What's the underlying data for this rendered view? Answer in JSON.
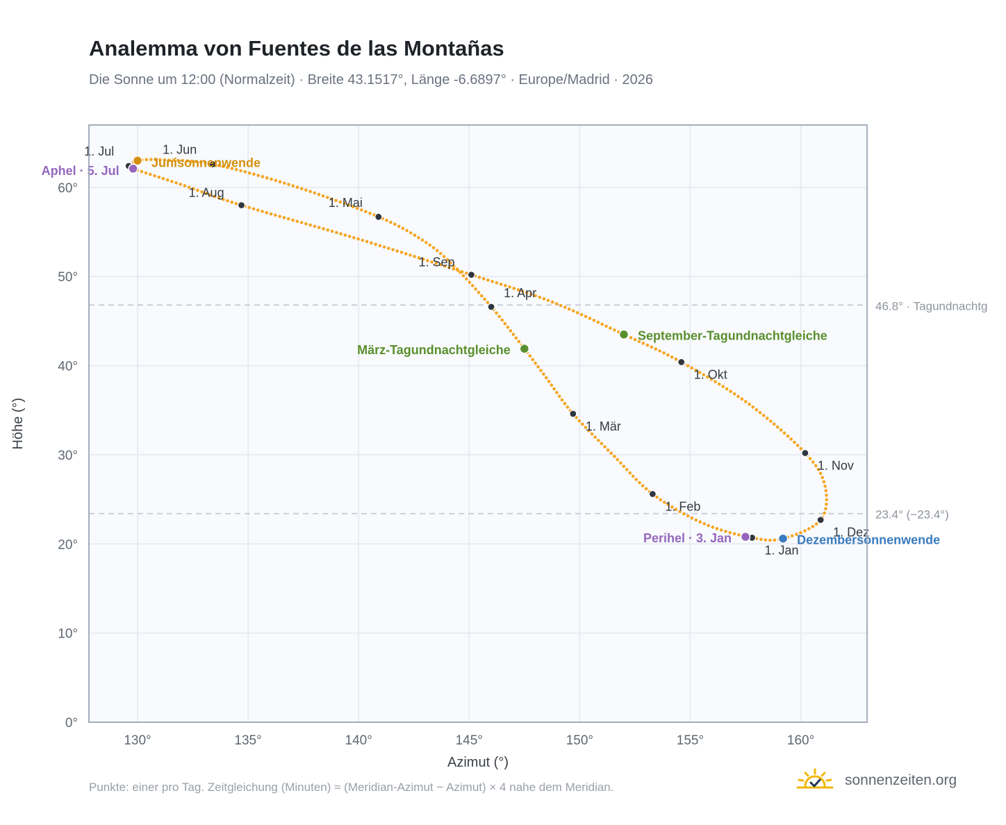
{
  "title": "Analemma von Fuentes de las Montañas",
  "subtitle": "Die Sonne um 12:00 (Normalzeit) · Breite 43.1517°, Länge -6.6897° · Europe/Madrid · 2026",
  "footnote": "Punkte: einer pro Tag. Zeitgleichung (Minuten) ≈ (Meridian-Azimut − Azimut) × 4 nahe dem Meridian.",
  "brand": {
    "name": "sonnenzeiten.org",
    "icon": "sun-check-icon"
  },
  "colors": {
    "curve": "#f5a623",
    "month_marker": "#2f3640",
    "solstice_june": "#d4900d",
    "solstice_december": "#3a7bbf",
    "equinox": "#5a8f2e",
    "apsis": "#9467bd",
    "reference_line": "#c3cad3"
  },
  "chart_data": {
    "type": "scatter",
    "xlabel": "Azimut (°)",
    "ylabel": "Höhe (°)",
    "xlim": [
      127.8,
      163.0
    ],
    "ylim": [
      0,
      67
    ],
    "xticks": [
      130,
      135,
      140,
      145,
      150,
      155,
      160
    ],
    "yticks": [
      0,
      10,
      20,
      30,
      40,
      50,
      60
    ],
    "tick_suffix": "°",
    "grid": true,
    "analemma_path": [
      {
        "az": 157.8,
        "alt": 20.7
      },
      {
        "az": 155.6,
        "alt": 22.3
      },
      {
        "az": 153.3,
        "alt": 25.6
      },
      {
        "az": 151.5,
        "alt": 30.0
      },
      {
        "az": 149.7,
        "alt": 34.6
      },
      {
        "az": 148.5,
        "alt": 38.6
      },
      {
        "az": 147.5,
        "alt": 41.9
      },
      {
        "az": 146.0,
        "alt": 46.6
      },
      {
        "az": 144.3,
        "alt": 51.2
      },
      {
        "az": 143.0,
        "alt": 53.9
      },
      {
        "az": 140.9,
        "alt": 56.7
      },
      {
        "az": 137.0,
        "alt": 60.2
      },
      {
        "az": 133.4,
        "alt": 62.6
      },
      {
        "az": 131.0,
        "alt": 63.1
      },
      {
        "az": 130.0,
        "alt": 63.0
      },
      {
        "az": 129.6,
        "alt": 62.4
      },
      {
        "az": 129.8,
        "alt": 62.1
      },
      {
        "az": 132.0,
        "alt": 60.3
      },
      {
        "az": 134.7,
        "alt": 58.0
      },
      {
        "az": 140.0,
        "alt": 54.2
      },
      {
        "az": 145.1,
        "alt": 50.2
      },
      {
        "az": 148.7,
        "alt": 47.2
      },
      {
        "az": 152.0,
        "alt": 43.5
      },
      {
        "az": 154.6,
        "alt": 40.4
      },
      {
        "az": 157.6,
        "alt": 35.8
      },
      {
        "az": 160.2,
        "alt": 30.2
      },
      {
        "az": 161.1,
        "alt": 26.5
      },
      {
        "az": 160.9,
        "alt": 22.7
      },
      {
        "az": 159.2,
        "alt": 20.6
      },
      {
        "az": 157.8,
        "alt": 20.7
      }
    ],
    "month_points": [
      {
        "label": "1. Jan",
        "az": 157.8,
        "alt": 20.7,
        "dx": 18,
        "dy": 24
      },
      {
        "label": "1. Feb",
        "az": 153.3,
        "alt": 25.6,
        "dx": 18,
        "dy": 24
      },
      {
        "label": "1. Mär",
        "az": 149.7,
        "alt": 34.6,
        "dx": 18,
        "dy": 24
      },
      {
        "label": "1. Apr",
        "az": 146.0,
        "alt": 46.6,
        "dx": 18,
        "dy": -14
      },
      {
        "label": "1. Mai",
        "az": 140.9,
        "alt": 56.7,
        "dx": -72,
        "dy": -14
      },
      {
        "label": "1. Jun",
        "az": 133.4,
        "alt": 62.6,
        "dx": -72,
        "dy": -15
      },
      {
        "label": "1. Jul",
        "az": 129.6,
        "alt": 62.4,
        "dx": -64,
        "dy": -15
      },
      {
        "label": "1. Aug",
        "az": 134.7,
        "alt": 58.0,
        "dx": -76,
        "dy": -12
      },
      {
        "label": "1. Sep",
        "az": 145.1,
        "alt": 50.2,
        "dx": -76,
        "dy": -12
      },
      {
        "label": "1. Okt",
        "az": 154.6,
        "alt": 40.4,
        "dx": 18,
        "dy": 24
      },
      {
        "label": "1. Nov",
        "az": 160.2,
        "alt": 30.2,
        "dx": 18,
        "dy": 24
      },
      {
        "label": "1. Dez",
        "az": 160.9,
        "alt": 22.7,
        "dx": 18,
        "dy": 24
      }
    ],
    "events": [
      {
        "label": "Junisonnenwende",
        "az": 130.0,
        "alt": 63.0,
        "kind": "solstice_june",
        "anchor": "start",
        "dx": 20,
        "dy": 9
      },
      {
        "label": "Dezembersonnenwende",
        "az": 159.2,
        "alt": 20.6,
        "kind": "solstice_december",
        "anchor": "start",
        "dx": 20,
        "dy": 8
      },
      {
        "label": "März-Tagundnachtgleiche",
        "az": 147.5,
        "alt": 41.9,
        "kind": "equinox",
        "anchor": "end",
        "dx": -20,
        "dy": 8
      },
      {
        "label": "September-Tagundnachtgleiche",
        "az": 152.0,
        "alt": 43.5,
        "kind": "equinox",
        "anchor": "start",
        "dx": 20,
        "dy": 8
      },
      {
        "label": "Aphel · 5. Jul",
        "az": 129.8,
        "alt": 62.1,
        "kind": "apsis",
        "anchor": "end",
        "dx": -20,
        "dy": 9
      },
      {
        "label": "Perihel · 3. Jan",
        "az": 157.5,
        "alt": 20.8,
        "kind": "apsis",
        "anchor": "end",
        "dx": -20,
        "dy": 8
      }
    ],
    "reference_lines": [
      {
        "alt": 46.8,
        "label": "46.8° · Tagundnachtg"
      },
      {
        "alt": 23.4,
        "label": "23.4° (−23.4°)"
      }
    ]
  }
}
